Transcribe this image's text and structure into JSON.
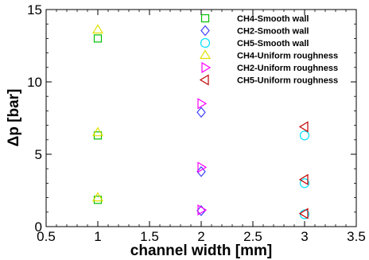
{
  "chart_data": {
    "type": "scatter",
    "title": "",
    "xlabel": "channel width [mm]",
    "ylabel": "Δp [bar]",
    "xlim": [
      0.5,
      3.5
    ],
    "ylim": [
      0,
      15
    ],
    "xticks": [
      "0.5",
      "1",
      "1.5",
      "2",
      "2.5",
      "3",
      "3.5"
    ],
    "yticks": [
      "0",
      "5",
      "10",
      "15"
    ],
    "grid": false,
    "legend_position": "top-right",
    "series": [
      {
        "name": "CH4-Smooth wall",
        "marker": "square",
        "color": "#00c000",
        "points": [
          [
            1,
            13.0
          ],
          [
            1,
            6.3
          ],
          [
            1,
            1.85
          ]
        ]
      },
      {
        "name": "CH2-Smooth wall",
        "marker": "diamond",
        "color": "#4040ff",
        "points": [
          [
            2,
            7.9
          ],
          [
            2,
            3.8
          ],
          [
            2,
            1.1
          ]
        ]
      },
      {
        "name": "CH5-Smooth wall",
        "marker": "circle",
        "color": "#00e0ff",
        "points": [
          [
            3,
            6.3
          ],
          [
            3,
            3.0
          ],
          [
            3,
            0.85
          ]
        ]
      },
      {
        "name": "CH4-Uniform roughness",
        "marker": "triangle-up",
        "color": "#e0e000",
        "points": [
          [
            1,
            13.6
          ],
          [
            1,
            6.5
          ],
          [
            1,
            2.0
          ]
        ]
      },
      {
        "name": "CH2-Uniform roughness",
        "marker": "triangle-right",
        "color": "#ff00ff",
        "points": [
          [
            2,
            8.5
          ],
          [
            2,
            4.1
          ],
          [
            2,
            1.15
          ]
        ]
      },
      {
        "name": "CH5-Uniform roughness",
        "marker": "triangle-left",
        "color": "#c00000",
        "points": [
          [
            3,
            6.9
          ],
          [
            3,
            3.25
          ],
          [
            3,
            0.9
          ]
        ]
      }
    ]
  }
}
